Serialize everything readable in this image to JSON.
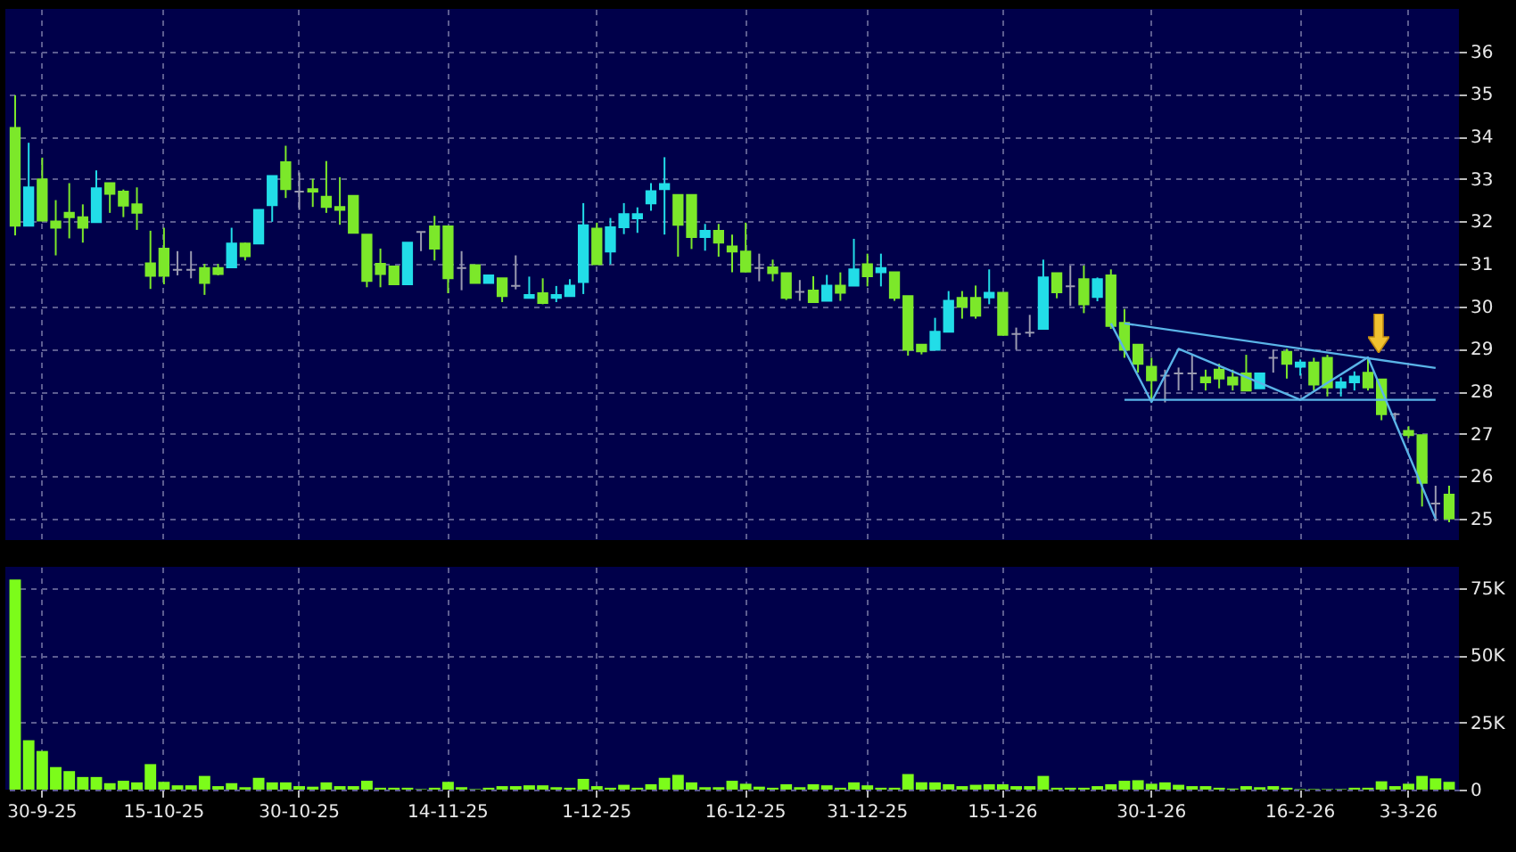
{
  "chart_data": [
    {
      "type": "candlestick",
      "categories": [
        null,
        null,
        null,
        null,
        null,
        null,
        null,
        null,
        null,
        null,
        null,
        null,
        null,
        null,
        null,
        null,
        null,
        null,
        null,
        null,
        null,
        null,
        null,
        null,
        null,
        null,
        null,
        null,
        null,
        null,
        null,
        null,
        null,
        null,
        null,
        null,
        null,
        null,
        null,
        null,
        null,
        null,
        null,
        null,
        null,
        null,
        null,
        null,
        null,
        null,
        null,
        null,
        null,
        null,
        null,
        null,
        null,
        null,
        null,
        null,
        null,
        null,
        null,
        null,
        null,
        null,
        null,
        null,
        null,
        null,
        null,
        null,
        null,
        null,
        null,
        null,
        null,
        null,
        null,
        null,
        null,
        null,
        null,
        null,
        null,
        null,
        null,
        null,
        null,
        null,
        null,
        null,
        null,
        null,
        null,
        null,
        null,
        null,
        null,
        null,
        null,
        null,
        null,
        null,
        null,
        null,
        null
      ],
      "ohlc": [
        [
          34.2,
          34.97,
          31.67,
          31.9
        ],
        [
          31.9,
          33.85,
          31.9,
          32.8
        ],
        [
          32.99,
          33.5,
          32.0,
          32.02
        ],
        [
          32.0,
          32.5,
          31.2,
          31.85
        ],
        [
          32.2,
          32.9,
          31.6,
          32.1
        ],
        [
          32.1,
          32.4,
          31.5,
          31.85
        ],
        [
          31.98,
          33.2,
          31.98,
          32.78
        ],
        [
          32.9,
          32.9,
          32.2,
          32.65
        ],
        [
          32.7,
          32.75,
          32.1,
          32.37
        ],
        [
          32.4,
          32.8,
          31.8,
          32.2
        ],
        [
          31.01,
          31.78,
          30.41,
          30.72
        ],
        [
          31.36,
          31.85,
          30.52,
          30.72
        ],
        [
          30.86,
          31.3,
          30.73,
          30.86
        ],
        [
          30.86,
          31.3,
          30.66,
          30.86
        ],
        [
          30.9,
          31.0,
          30.27,
          30.55
        ],
        [
          30.9,
          31.0,
          30.73,
          30.76
        ],
        [
          30.92,
          31.85,
          30.92,
          31.48
        ],
        [
          31.48,
          31.5,
          31.08,
          31.18
        ],
        [
          31.48,
          32.27,
          31.48,
          32.27
        ],
        [
          32.38,
          33.07,
          31.99,
          33.07
        ],
        [
          33.39,
          33.78,
          32.55,
          32.76
        ],
        [
          32.7,
          33.15,
          32.27,
          32.7
        ],
        [
          32.76,
          33.0,
          32.34,
          32.7
        ],
        [
          32.58,
          33.42,
          32.2,
          32.34
        ],
        [
          32.34,
          33.04,
          31.92,
          32.27
        ],
        [
          32.6,
          32.6,
          31.73,
          31.73
        ],
        [
          31.69,
          31.69,
          30.45,
          30.6
        ],
        [
          31.0,
          31.36,
          30.45,
          30.76
        ],
        [
          30.94,
          30.94,
          30.52,
          30.52
        ],
        [
          30.52,
          31.5,
          30.52,
          31.5
        ],
        [
          31.75,
          31.75,
          31.3,
          31.75
        ],
        [
          31.88,
          32.13,
          31.08,
          31.36
        ],
        [
          31.88,
          31.88,
          30.31,
          30.66
        ],
        [
          30.9,
          31.3,
          30.38,
          30.9
        ],
        [
          30.97,
          30.97,
          30.55,
          30.55
        ],
        [
          30.55,
          30.73,
          30.55,
          30.73
        ],
        [
          30.66,
          30.66,
          30.1,
          30.24
        ],
        [
          30.48,
          31.2,
          30.4,
          30.48
        ],
        [
          30.2,
          30.7,
          30.2,
          30.27
        ],
        [
          30.31,
          30.66,
          30.05,
          30.08
        ],
        [
          30.2,
          30.48,
          30.1,
          30.27
        ],
        [
          30.24,
          30.64,
          30.24,
          30.49
        ],
        [
          30.57,
          32.43,
          30.29,
          31.91
        ],
        [
          31.83,
          31.97,
          30.99,
          30.99
        ],
        [
          31.29,
          32.08,
          30.99,
          31.86
        ],
        [
          31.86,
          32.43,
          31.7,
          32.17
        ],
        [
          32.07,
          32.33,
          31.73,
          32.17
        ],
        [
          32.42,
          32.9,
          32.25,
          32.71
        ],
        [
          32.76,
          33.51,
          31.69,
          32.88
        ],
        [
          32.62,
          32.62,
          31.17,
          31.92
        ],
        [
          32.62,
          32.62,
          31.35,
          31.63
        ],
        [
          31.63,
          31.94,
          31.31,
          31.78
        ],
        [
          31.78,
          31.94,
          31.17,
          31.5
        ],
        [
          31.41,
          31.69,
          30.8,
          31.29
        ],
        [
          31.29,
          31.97,
          30.8,
          30.82
        ],
        [
          30.9,
          31.24,
          30.59,
          30.9
        ],
        [
          30.92,
          31.1,
          30.59,
          30.78
        ],
        [
          30.78,
          30.78,
          30.15,
          30.2
        ],
        [
          30.34,
          30.62,
          30.13,
          30.34
        ],
        [
          30.37,
          30.71,
          30.1,
          30.1
        ],
        [
          30.13,
          30.74,
          30.13,
          30.49
        ],
        [
          30.49,
          30.8,
          30.13,
          30.32
        ],
        [
          30.49,
          31.59,
          30.49,
          30.87
        ],
        [
          30.99,
          31.24,
          30.47,
          30.71
        ],
        [
          30.8,
          31.24,
          30.47,
          30.9
        ],
        [
          30.8,
          30.8,
          30.13,
          30.2
        ],
        [
          30.24,
          30.24,
          28.84,
          28.98
        ],
        [
          29.1,
          29.1,
          28.87,
          28.94
        ],
        [
          28.98,
          29.73,
          28.98,
          29.4
        ],
        [
          29.4,
          30.36,
          29.4,
          30.13
        ],
        [
          30.2,
          30.36,
          29.71,
          29.99
        ],
        [
          30.2,
          30.49,
          29.71,
          29.78
        ],
        [
          30.21,
          30.87,
          30.05,
          30.32
        ],
        [
          30.32,
          30.32,
          29.33,
          29.33
        ],
        [
          29.35,
          29.5,
          28.98,
          29.35
        ],
        [
          29.38,
          29.8,
          29.28,
          29.38
        ],
        [
          29.47,
          31.1,
          29.47,
          30.68
        ],
        [
          30.78,
          30.78,
          30.19,
          30.33
        ],
        [
          30.47,
          30.96,
          30.01,
          30.47
        ],
        [
          30.64,
          30.96,
          29.84,
          30.05
        ],
        [
          30.22,
          30.68,
          30.12,
          30.64
        ],
        [
          30.73,
          30.87,
          29.47,
          29.54
        ],
        [
          29.61,
          29.94,
          28.79,
          28.98
        ],
        [
          29.1,
          29.1,
          28.44,
          28.65
        ],
        [
          28.58,
          28.79,
          27.74,
          28.26
        ],
        [
          28.37,
          28.51,
          27.74,
          28.37
        ],
        [
          28.42,
          28.56,
          28.02,
          28.42
        ],
        [
          28.42,
          28.86,
          28.02,
          28.42
        ],
        [
          28.33,
          28.51,
          28.02,
          28.21
        ],
        [
          28.51,
          28.65,
          28.07,
          28.3
        ],
        [
          28.33,
          28.51,
          28.02,
          28.16
        ],
        [
          28.42,
          28.86,
          28.02,
          28.02
        ],
        [
          28.07,
          28.42,
          28.07,
          28.42
        ],
        [
          28.79,
          28.98,
          28.44,
          28.79
        ],
        [
          28.93,
          29.0,
          28.3,
          28.65
        ],
        [
          28.58,
          28.75,
          28.37,
          28.68
        ],
        [
          28.68,
          28.79,
          28.02,
          28.16
        ],
        [
          28.79,
          28.86,
          27.88,
          28.09
        ],
        [
          28.09,
          28.33,
          27.88,
          28.21
        ],
        [
          28.21,
          28.47,
          28.02,
          28.35
        ],
        [
          28.44,
          28.79,
          28.02,
          28.09
        ],
        [
          28.28,
          28.28,
          27.32,
          27.46
        ],
        [
          27.46,
          27.5,
          27.32,
          27.46
        ],
        [
          27.07,
          27.18,
          26.9,
          26.97
        ],
        [
          26.97,
          26.97,
          25.29,
          25.85
        ],
        [
          25.36,
          25.78,
          24.94,
          25.36
        ],
        [
          25.57,
          25.78,
          24.92,
          25.01
        ]
      ],
      "colors": [
        "#7ce82a",
        "#22dde8",
        "#7ce82a",
        "#7ce82a",
        "#7ce82a",
        "#7ce82a",
        "#22dde8",
        "#7ce82a",
        "#7ce82a",
        "#7ce82a",
        "#7ce82a",
        "#7ce82a",
        "#9a9ab0",
        "#9a9ab0",
        "#7ce82a",
        "#7ce82a",
        "#22dde8",
        "#7ce82a",
        "#22dde8",
        "#22dde8",
        "#7ce82a",
        "#9a9ab0",
        "#7ce82a",
        "#7ce82a",
        "#7ce82a",
        "#7ce82a",
        "#7ce82a",
        "#7ce82a",
        "#7ce82a",
        "#22dde8",
        "#9a9ab0",
        "#7ce82a",
        "#7ce82a",
        "#9a9ab0",
        "#7ce82a",
        "#22dde8",
        "#7ce82a",
        "#9a9ab0",
        "#22dde8",
        "#7ce82a",
        "#22dde8",
        "#22dde8",
        "#22dde8",
        "#7ce82a",
        "#22dde8",
        "#22dde8",
        "#22dde8",
        "#22dde8",
        "#22dde8",
        "#7ce82a",
        "#7ce82a",
        "#22dde8",
        "#7ce82a",
        "#7ce82a",
        "#7ce82a",
        "#9a9ab0",
        "#7ce82a",
        "#7ce82a",
        "#9a9ab0",
        "#7ce82a",
        "#22dde8",
        "#7ce82a",
        "#22dde8",
        "#7ce82a",
        "#22dde8",
        "#7ce82a",
        "#7ce82a",
        "#7ce82a",
        "#22dde8",
        "#22dde8",
        "#7ce82a",
        "#7ce82a",
        "#22dde8",
        "#7ce82a",
        "#9a9ab0",
        "#9a9ab0",
        "#22dde8",
        "#7ce82a",
        "#9a9ab0",
        "#7ce82a",
        "#22dde8",
        "#7ce82a",
        "#7ce82a",
        "#7ce82a",
        "#7ce82a",
        "#9a9ab0",
        "#9a9ab0",
        "#9a9ab0",
        "#7ce82a",
        "#7ce82a",
        "#7ce82a",
        "#7ce82a",
        "#22dde8",
        "#9a9ab0",
        "#7ce82a",
        "#22dde8",
        "#7ce82a",
        "#7ce82a",
        "#22dde8",
        "#22dde8",
        "#7ce82a",
        "#7ce82a",
        "#9a9ab0",
        "#7ce82a",
        "#7ce82a",
        "#9a9ab0",
        "#7ce82a"
      ],
      "series": [
        {
          "type": "line",
          "color": "#5ab4e8",
          "values": [
            null,
            null,
            null,
            null,
            null,
            null,
            null,
            null,
            null,
            null,
            null,
            null,
            null,
            null,
            null,
            null,
            null,
            null,
            null,
            null,
            null,
            null,
            null,
            null,
            null,
            null,
            null,
            null,
            null,
            null,
            null,
            null,
            null,
            null,
            null,
            null,
            null,
            null,
            null,
            null,
            null,
            null,
            null,
            null,
            null,
            null,
            null,
            null,
            null,
            null,
            null,
            null,
            null,
            null,
            null,
            null,
            null,
            null,
            null,
            null,
            null,
            null,
            null,
            null,
            null,
            null,
            null,
            null,
            null,
            null,
            null,
            null,
            null,
            null,
            null,
            null,
            null,
            null,
            null,
            null,
            null,
            29.6,
            null,
            null,
            27.75,
            null,
            29.0,
            null,
            null,
            null,
            null,
            null,
            null,
            null,
            null,
            27.8,
            null,
            null,
            null,
            null,
            28.8,
            null,
            null,
            null,
            null,
            25.0,
            null
          ]
        },
        {
          "type": "line",
          "color": "#5ab4e8",
          "values": [
            null,
            null,
            null,
            null,
            null,
            null,
            null,
            null,
            null,
            null,
            null,
            null,
            null,
            null,
            null,
            null,
            null,
            null,
            null,
            null,
            null,
            null,
            null,
            null,
            null,
            null,
            null,
            null,
            null,
            null,
            null,
            null,
            null,
            null,
            null,
            null,
            null,
            null,
            null,
            null,
            null,
            null,
            null,
            null,
            null,
            null,
            null,
            null,
            null,
            null,
            null,
            null,
            null,
            null,
            null,
            null,
            null,
            null,
            null,
            null,
            null,
            null,
            null,
            null,
            null,
            null,
            null,
            null,
            null,
            null,
            null,
            null,
            null,
            null,
            null,
            null,
            null,
            null,
            null,
            null,
            null,
            null,
            29.6,
            null,
            null,
            null,
            null,
            null,
            null,
            null,
            null,
            null,
            null,
            null,
            null,
            null,
            null,
            null,
            null,
            null,
            null,
            null,
            null,
            null,
            null,
            28.55,
            null
          ]
        },
        {
          "type": "line",
          "color": "#5ab4e8",
          "values": [
            null,
            null,
            null,
            null,
            null,
            null,
            null,
            null,
            null,
            null,
            null,
            null,
            null,
            null,
            null,
            null,
            null,
            null,
            null,
            null,
            null,
            null,
            null,
            null,
            null,
            null,
            null,
            null,
            null,
            null,
            null,
            null,
            null,
            null,
            null,
            null,
            null,
            null,
            null,
            null,
            null,
            null,
            null,
            null,
            null,
            null,
            null,
            null,
            null,
            null,
            null,
            null,
            null,
            null,
            null,
            null,
            null,
            null,
            null,
            null,
            null,
            null,
            null,
            null,
            null,
            null,
            null,
            null,
            null,
            null,
            null,
            null,
            null,
            null,
            null,
            null,
            null,
            null,
            null,
            null,
            null,
            null,
            27.8,
            null,
            null,
            null,
            null,
            null,
            null,
            null,
            null,
            null,
            null,
            null,
            null,
            null,
            null,
            null,
            null,
            null,
            null,
            null,
            null,
            null,
            null,
            27.8,
            null
          ]
        }
      ],
      "ylim": [
        24.5,
        37
      ],
      "yticks": [
        25,
        26,
        27,
        28,
        29,
        30,
        31,
        32,
        33,
        34,
        35,
        36
      ],
      "grid": true,
      "tick_labels": "y"
    },
    {
      "type": "bar",
      "categories": [
        null,
        null,
        "30-9-25",
        null,
        null,
        null,
        null,
        null,
        null,
        null,
        null,
        "15-10-25",
        null,
        null,
        null,
        null,
        null,
        null,
        null,
        null,
        null,
        "30-10-25",
        null,
        null,
        null,
        null,
        null,
        null,
        null,
        null,
        null,
        null,
        "14-11-25",
        null,
        null,
        null,
        null,
        null,
        null,
        null,
        null,
        null,
        null,
        "1-12-25",
        null,
        null,
        null,
        null,
        null,
        null,
        null,
        null,
        null,
        null,
        "16-12-25",
        null,
        null,
        null,
        null,
        null,
        null,
        null,
        null,
        "31-12-25",
        null,
        null,
        null,
        null,
        null,
        null,
        null,
        null,
        null,
        "15-1-26",
        null,
        null,
        null,
        null,
        null,
        null,
        null,
        null,
        null,
        null,
        "30-1-26",
        null,
        null,
        null,
        null,
        null,
        null,
        null,
        null,
        null,
        null,
        "16-2-26",
        null,
        null,
        null,
        null,
        null,
        null,
        null,
        "3-3-26",
        null,
        null,
        null
      ],
      "values": [
        78.3,
        18.4,
        14.4,
        8.4,
        6.9,
        4.7,
        4.7,
        2.4,
        3.3,
        2.7,
        9.5,
        2.9,
        1.6,
        1.6,
        5.1,
        1.3,
        2.4,
        0.9,
        4.4,
        2.7,
        2.7,
        1.3,
        1.1,
        2.7,
        1.3,
        1.3,
        3.3,
        0.7,
        0.7,
        0.7,
        0.2,
        0.7,
        2.9,
        0.9,
        0.2,
        0.7,
        1.3,
        1.3,
        1.6,
        1.6,
        0.9,
        0.7,
        4.0,
        1.3,
        0.7,
        1.8,
        0.7,
        2.0,
        4.4,
        5.5,
        2.7,
        0.9,
        0.9,
        3.3,
        2.2,
        1.1,
        0.7,
        2.0,
        0.9,
        2.0,
        1.6,
        0.7,
        2.7,
        1.6,
        0.7,
        0.7,
        5.8,
        2.7,
        2.7,
        2.0,
        1.3,
        1.8,
        2.0,
        2.0,
        1.3,
        1.3,
        5.1,
        0.7,
        0.7,
        0.7,
        1.3,
        2.0,
        3.3,
        3.5,
        2.2,
        2.7,
        1.8,
        1.3,
        1.3,
        0.7,
        0.4,
        1.3,
        0.9,
        1.3,
        0.7,
        0.2,
        0.2,
        0.2,
        0.2,
        0.7,
        0.7,
        3.1,
        1.3,
        2.2,
        5.1,
        4.2,
        2.9
      ],
      "color": "#7cfc1a",
      "ylim": [
        0,
        83
      ],
      "yticks": [
        0,
        {
          "value": 25,
          "label": "25K"
        },
        {
          "value": 50,
          "label": "50K"
        },
        {
          "value": 75,
          "label": "75K"
        }
      ],
      "grid": true
    }
  ]
}
